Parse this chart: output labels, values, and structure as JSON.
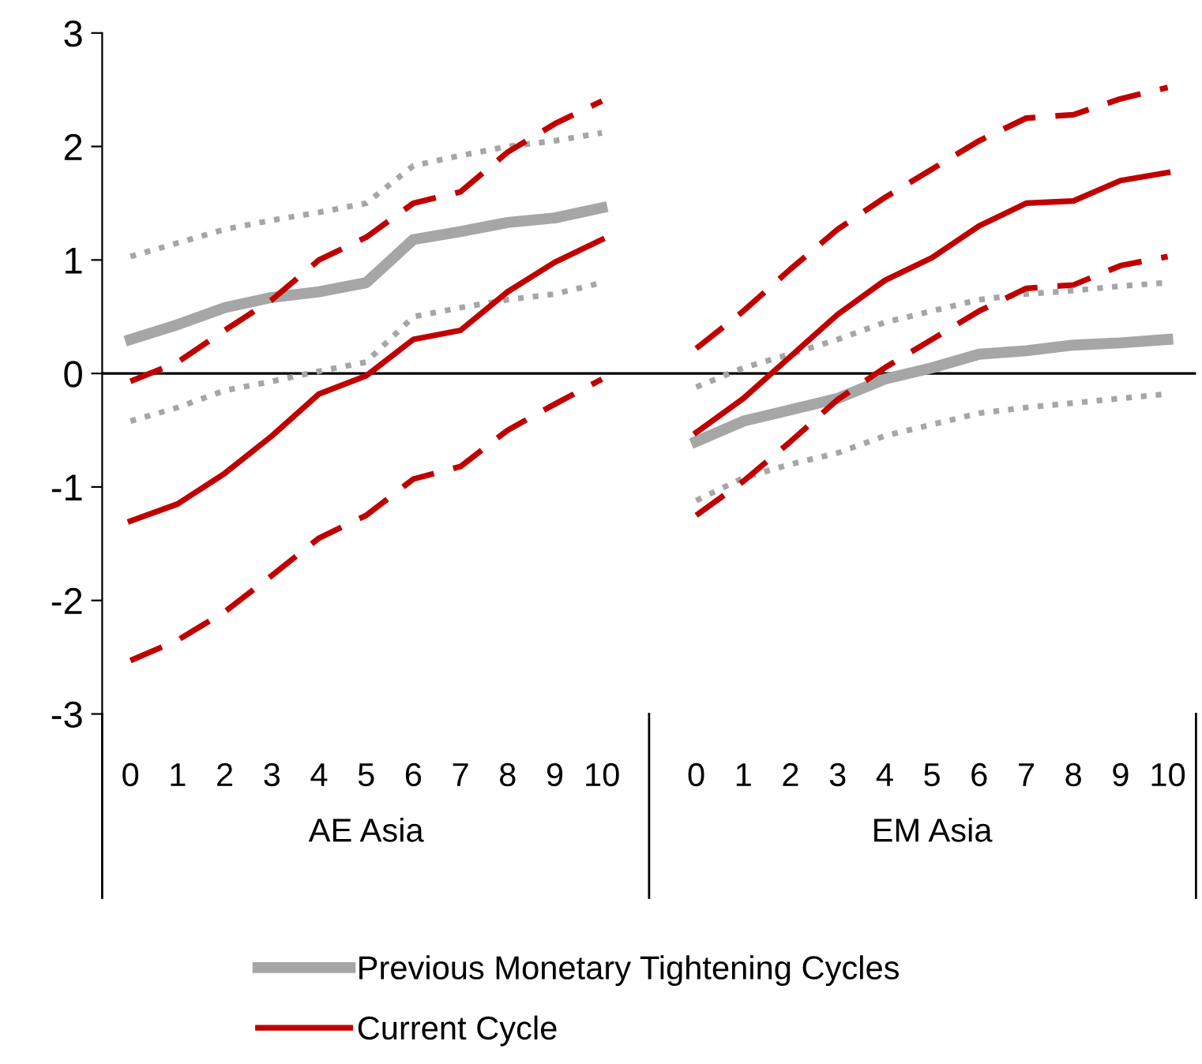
{
  "chart_data": {
    "type": "line",
    "categories": [
      "0",
      "1",
      "2",
      "3",
      "4",
      "5",
      "6",
      "7",
      "8",
      "9",
      "10",
      null,
      "0",
      "1",
      "2",
      "3",
      "4",
      "5",
      "6",
      "7",
      "8",
      "9",
      "10"
    ],
    "ylim": [
      -3,
      3
    ],
    "yticks": [
      -3,
      -2,
      -1,
      0,
      1,
      2,
      3
    ],
    "grid": false,
    "legend": "bottom",
    "marker": "none",
    "ref_lines": [
      {
        "axis": "y",
        "value": 0,
        "color": "#000000",
        "line_style": "solid"
      }
    ],
    "annotations": [
      "AE Asia",
      "EM Asia"
    ],
    "series": [
      {
        "name": "Previous Monetary Tightening Cycles",
        "color": "#a6a6a6",
        "line_style": "solid",
        "values": [
          0.3,
          0.43,
          0.58,
          0.67,
          0.72,
          0.8,
          1.18,
          1.25,
          1.33,
          1.37,
          1.46,
          null,
          -0.6,
          -0.42,
          -0.32,
          -0.22,
          -0.05,
          0.05,
          0.17,
          0.2,
          0.25,
          0.27,
          0.3
        ]
      },
      {
        "color": "#a6a6a6",
        "line_style": "dotted",
        "values": [
          1.03,
          1.15,
          1.27,
          1.35,
          1.42,
          1.5,
          1.83,
          1.92,
          2.0,
          2.05,
          2.12,
          null,
          -0.12,
          0.05,
          0.17,
          0.3,
          0.45,
          0.55,
          0.65,
          0.7,
          0.73,
          0.77,
          0.8
        ]
      },
      {
        "color": "#a6a6a6",
        "line_style": "dotted",
        "values": [
          -0.42,
          -0.3,
          -0.15,
          -0.07,
          0.02,
          0.1,
          0.5,
          0.58,
          0.65,
          0.7,
          0.8,
          null,
          -1.12,
          -0.92,
          -0.8,
          -0.7,
          -0.55,
          -0.45,
          -0.35,
          -0.3,
          -0.26,
          -0.22,
          -0.18
        ]
      },
      {
        "name": "Current Cycle",
        "color": "#c00000",
        "line_style": "solid",
        "values": [
          -1.3,
          -1.15,
          -0.88,
          -0.55,
          -0.18,
          -0.02,
          0.3,
          0.38,
          0.72,
          0.98,
          1.18,
          null,
          -0.52,
          -0.22,
          0.15,
          0.52,
          0.82,
          1.02,
          1.3,
          1.5,
          1.52,
          1.7,
          1.77
        ]
      },
      {
        "color": "#c00000",
        "line_style": "dashed",
        "values": [
          -0.07,
          0.1,
          0.38,
          0.65,
          1.0,
          1.2,
          1.5,
          1.6,
          1.95,
          2.2,
          2.4,
          null,
          0.22,
          0.55,
          0.92,
          1.27,
          1.55,
          1.8,
          2.05,
          2.25,
          2.28,
          2.42,
          2.52
        ]
      },
      {
        "color": "#c00000",
        "line_style": "dashed",
        "values": [
          -2.53,
          -2.35,
          -2.1,
          -1.78,
          -1.45,
          -1.25,
          -0.93,
          -0.82,
          -0.5,
          -0.27,
          -0.05,
          null,
          -1.25,
          -0.95,
          -0.6,
          -0.23,
          0.05,
          0.3,
          0.55,
          0.75,
          0.78,
          0.95,
          1.03
        ]
      }
    ]
  }
}
